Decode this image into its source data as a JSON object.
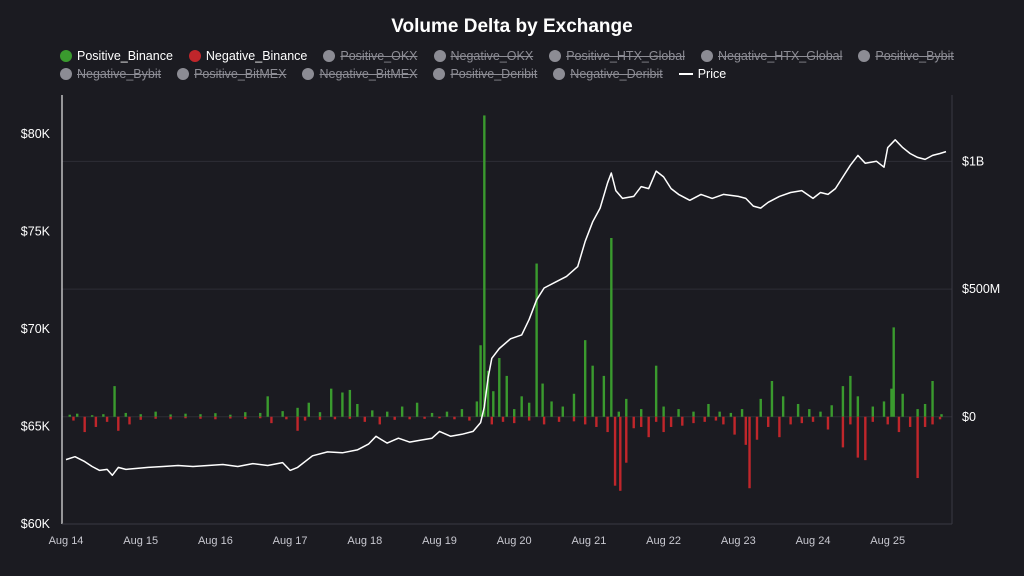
{
  "chart_data": {
    "type": "bar",
    "title": "Volume Delta by Exchange",
    "legend_placement": "top",
    "grid": true,
    "y_left": {
      "label": "",
      "ticks": [
        "$60K",
        "$65K",
        "$70K",
        "$75K",
        "$80K"
      ],
      "tick_values": [
        60000,
        65000,
        70000,
        75000,
        80000
      ],
      "ylim": [
        60000,
        82000
      ]
    },
    "y_right": {
      "label": "",
      "ticks": [
        "$0",
        "$500M",
        "$1B"
      ],
      "tick_values": [
        0,
        500000000,
        1000000000
      ],
      "ylim": [
        -420000000,
        1260000000
      ]
    },
    "x_ticks": [
      "Aug 14",
      "Aug 15",
      "Aug 16",
      "Aug 17",
      "Aug 18",
      "Aug 19",
      "Aug 20",
      "Aug 21",
      "Aug 22",
      "Aug 23",
      "Aug 24",
      "Aug 25"
    ],
    "x_range_days": [
      0,
      11.78
    ],
    "legend": [
      {
        "name": "Positive_Binance",
        "color": "#3a9a2e",
        "shape": "dot",
        "visible": true
      },
      {
        "name": "Negative_Binance",
        "color": "#c0262b",
        "shape": "dot",
        "visible": true
      },
      {
        "name": "Positive_OKX",
        "color": "#8c8c94",
        "shape": "dot",
        "visible": false
      },
      {
        "name": "Negative_OKX",
        "color": "#8c8c94",
        "shape": "dot",
        "visible": false
      },
      {
        "name": "Positive_HTX_Global",
        "color": "#8c8c94",
        "shape": "dot",
        "visible": false
      },
      {
        "name": "Negative_HTX_Global",
        "color": "#8c8c94",
        "shape": "dot",
        "visible": false
      },
      {
        "name": "Positive_Bybit",
        "color": "#8c8c94",
        "shape": "dot",
        "visible": false
      },
      {
        "name": "Negative_Bybit",
        "color": "#8c8c94",
        "shape": "dot",
        "visible": false
      },
      {
        "name": "Positive_BitMEX",
        "color": "#8c8c94",
        "shape": "dot",
        "visible": false
      },
      {
        "name": "Negative_BitMEX",
        "color": "#8c8c94",
        "shape": "dot",
        "visible": false
      },
      {
        "name": "Positive_Deribit",
        "color": "#8c8c94",
        "shape": "dot",
        "visible": false
      },
      {
        "name": "Negative_Deribit",
        "color": "#8c8c94",
        "shape": "dot",
        "visible": false
      },
      {
        "name": "Price",
        "color": "#ffffff",
        "shape": "line",
        "visible": true
      }
    ],
    "series": [
      {
        "name": "Price",
        "axis": "left",
        "points": [
          [
            0.0,
            63300
          ],
          [
            0.12,
            63450
          ],
          [
            0.25,
            63200
          ],
          [
            0.35,
            62950
          ],
          [
            0.45,
            62750
          ],
          [
            0.55,
            62800
          ],
          [
            0.62,
            62500
          ],
          [
            0.7,
            62900
          ],
          [
            0.8,
            62800
          ],
          [
            0.95,
            62850
          ],
          [
            1.1,
            62900
          ],
          [
            1.3,
            62950
          ],
          [
            1.5,
            63000
          ],
          [
            1.7,
            62950
          ],
          [
            1.9,
            63000
          ],
          [
            2.1,
            63050
          ],
          [
            2.3,
            62950
          ],
          [
            2.5,
            63100
          ],
          [
            2.7,
            63000
          ],
          [
            2.9,
            63150
          ],
          [
            3.0,
            62750
          ],
          [
            3.1,
            62900
          ],
          [
            3.3,
            63500
          ],
          [
            3.5,
            63700
          ],
          [
            3.7,
            63650
          ],
          [
            3.9,
            63800
          ],
          [
            4.05,
            64100
          ],
          [
            4.15,
            64500
          ],
          [
            4.3,
            64150
          ],
          [
            4.45,
            64400
          ],
          [
            4.6,
            64200
          ],
          [
            4.75,
            64300
          ],
          [
            4.9,
            64400
          ],
          [
            5.0,
            64750
          ],
          [
            5.15,
            64500
          ],
          [
            5.3,
            64600
          ],
          [
            5.45,
            64750
          ],
          [
            5.55,
            65200
          ],
          [
            5.6,
            66000
          ],
          [
            5.65,
            67500
          ],
          [
            5.7,
            68500
          ],
          [
            5.8,
            69000
          ],
          [
            5.95,
            69500
          ],
          [
            6.1,
            69700
          ],
          [
            6.2,
            70500
          ],
          [
            6.3,
            71500
          ],
          [
            6.4,
            72100
          ],
          [
            6.55,
            72400
          ],
          [
            6.7,
            72700
          ],
          [
            6.85,
            73200
          ],
          [
            6.95,
            74500
          ],
          [
            7.05,
            75500
          ],
          [
            7.15,
            76200
          ],
          [
            7.25,
            77500
          ],
          [
            7.3,
            78000
          ],
          [
            7.36,
            77100
          ],
          [
            7.45,
            76700
          ],
          [
            7.6,
            76800
          ],
          [
            7.7,
            77300
          ],
          [
            7.8,
            77200
          ],
          [
            7.9,
            78100
          ],
          [
            8.0,
            77800
          ],
          [
            8.1,
            77200
          ],
          [
            8.2,
            76900
          ],
          [
            8.35,
            76600
          ],
          [
            8.5,
            76900
          ],
          [
            8.65,
            76700
          ],
          [
            8.8,
            76900
          ],
          [
            9.0,
            76800
          ],
          [
            9.1,
            76700
          ],
          [
            9.2,
            76300
          ],
          [
            9.3,
            76200
          ],
          [
            9.4,
            76500
          ],
          [
            9.55,
            76800
          ],
          [
            9.7,
            77000
          ],
          [
            9.85,
            77100
          ],
          [
            10.0,
            76700
          ],
          [
            10.1,
            77000
          ],
          [
            10.2,
            76900
          ],
          [
            10.3,
            77200
          ],
          [
            10.4,
            77800
          ],
          [
            10.5,
            78400
          ],
          [
            10.6,
            78900
          ],
          [
            10.7,
            78500
          ],
          [
            10.85,
            78600
          ],
          [
            10.95,
            78300
          ],
          [
            11.0,
            79300
          ],
          [
            11.1,
            79700
          ],
          [
            11.2,
            79300
          ],
          [
            11.3,
            79000
          ],
          [
            11.4,
            78800
          ],
          [
            11.5,
            78700
          ],
          [
            11.6,
            78900
          ],
          [
            11.7,
            79000
          ],
          [
            11.78,
            79100
          ]
        ]
      },
      {
        "name": "Positive_Binance",
        "axis": "right",
        "points": [
          [
            0.05,
            8000000
          ],
          [
            0.15,
            12000000
          ],
          [
            0.35,
            6000000
          ],
          [
            0.5,
            10000000
          ],
          [
            0.65,
            120000000
          ],
          [
            0.8,
            15000000
          ],
          [
            1.0,
            10000000
          ],
          [
            1.2,
            20000000
          ],
          [
            1.4,
            9000000
          ],
          [
            1.6,
            12000000
          ],
          [
            1.8,
            10000000
          ],
          [
            2.0,
            14000000
          ],
          [
            2.2,
            8000000
          ],
          [
            2.4,
            18000000
          ],
          [
            2.6,
            15000000
          ],
          [
            2.7,
            80000000
          ],
          [
            2.9,
            22000000
          ],
          [
            3.1,
            35000000
          ],
          [
            3.25,
            55000000
          ],
          [
            3.4,
            18000000
          ],
          [
            3.55,
            110000000
          ],
          [
            3.7,
            95000000
          ],
          [
            3.8,
            105000000
          ],
          [
            3.9,
            50000000
          ],
          [
            4.1,
            25000000
          ],
          [
            4.3,
            20000000
          ],
          [
            4.5,
            40000000
          ],
          [
            4.7,
            55000000
          ],
          [
            4.9,
            15000000
          ],
          [
            5.1,
            20000000
          ],
          [
            5.3,
            30000000
          ],
          [
            5.5,
            60000000
          ],
          [
            5.55,
            280000000
          ],
          [
            5.6,
            1180000000
          ],
          [
            5.65,
            180000000
          ],
          [
            5.72,
            100000000
          ],
          [
            5.8,
            230000000
          ],
          [
            5.9,
            160000000
          ],
          [
            6.0,
            30000000
          ],
          [
            6.1,
            80000000
          ],
          [
            6.2,
            55000000
          ],
          [
            6.3,
            600000000
          ],
          [
            6.38,
            130000000
          ],
          [
            6.5,
            60000000
          ],
          [
            6.65,
            40000000
          ],
          [
            6.8,
            90000000
          ],
          [
            6.95,
            300000000
          ],
          [
            7.05,
            200000000
          ],
          [
            7.2,
            160000000
          ],
          [
            7.3,
            700000000
          ],
          [
            7.4,
            20000000
          ],
          [
            7.5,
            70000000
          ],
          [
            7.7,
            30000000
          ],
          [
            7.9,
            200000000
          ],
          [
            8.0,
            40000000
          ],
          [
            8.2,
            30000000
          ],
          [
            8.4,
            20000000
          ],
          [
            8.6,
            50000000
          ],
          [
            8.75,
            20000000
          ],
          [
            8.9,
            15000000
          ],
          [
            9.05,
            30000000
          ],
          [
            9.3,
            70000000
          ],
          [
            9.45,
            140000000
          ],
          [
            9.6,
            80000000
          ],
          [
            9.8,
            50000000
          ],
          [
            9.95,
            30000000
          ],
          [
            10.1,
            20000000
          ],
          [
            10.25,
            45000000
          ],
          [
            10.4,
            120000000
          ],
          [
            10.5,
            160000000
          ],
          [
            10.6,
            80000000
          ],
          [
            10.8,
            40000000
          ],
          [
            10.95,
            60000000
          ],
          [
            11.05,
            110000000
          ],
          [
            11.08,
            350000000
          ],
          [
            11.2,
            90000000
          ],
          [
            11.4,
            30000000
          ],
          [
            11.5,
            50000000
          ],
          [
            11.6,
            140000000
          ],
          [
            11.72,
            10000000
          ]
        ]
      },
      {
        "name": "Negative_Binance",
        "axis": "right",
        "points": [
          [
            0.1,
            -15000000
          ],
          [
            0.25,
            -60000000
          ],
          [
            0.4,
            -40000000
          ],
          [
            0.55,
            -20000000
          ],
          [
            0.7,
            -55000000
          ],
          [
            0.85,
            -30000000
          ],
          [
            1.0,
            -12000000
          ],
          [
            1.2,
            -8000000
          ],
          [
            1.4,
            -10000000
          ],
          [
            1.6,
            -6000000
          ],
          [
            1.8,
            -8000000
          ],
          [
            2.0,
            -10000000
          ],
          [
            2.2,
            -7000000
          ],
          [
            2.4,
            -9000000
          ],
          [
            2.6,
            -6000000
          ],
          [
            2.75,
            -25000000
          ],
          [
            2.95,
            -10000000
          ],
          [
            3.1,
            -55000000
          ],
          [
            3.2,
            -15000000
          ],
          [
            3.4,
            -12000000
          ],
          [
            3.6,
            -10000000
          ],
          [
            3.8,
            -8000000
          ],
          [
            4.0,
            -20000000
          ],
          [
            4.2,
            -30000000
          ],
          [
            4.4,
            -12000000
          ],
          [
            4.6,
            -10000000
          ],
          [
            4.8,
            -8000000
          ],
          [
            5.0,
            -6000000
          ],
          [
            5.2,
            -10000000
          ],
          [
            5.4,
            -15000000
          ],
          [
            5.7,
            -30000000
          ],
          [
            5.85,
            -20000000
          ],
          [
            6.0,
            -25000000
          ],
          [
            6.2,
            -15000000
          ],
          [
            6.4,
            -30000000
          ],
          [
            6.6,
            -20000000
          ],
          [
            6.8,
            -18000000
          ],
          [
            6.95,
            -30000000
          ],
          [
            7.1,
            -40000000
          ],
          [
            7.25,
            -60000000
          ],
          [
            7.35,
            -270000000
          ],
          [
            7.42,
            -290000000
          ],
          [
            7.5,
            -180000000
          ],
          [
            7.6,
            -45000000
          ],
          [
            7.7,
            -40000000
          ],
          [
            7.8,
            -80000000
          ],
          [
            7.9,
            -20000000
          ],
          [
            8.0,
            -60000000
          ],
          [
            8.1,
            -40000000
          ],
          [
            8.25,
            -35000000
          ],
          [
            8.4,
            -25000000
          ],
          [
            8.55,
            -20000000
          ],
          [
            8.7,
            -15000000
          ],
          [
            8.8,
            -30000000
          ],
          [
            8.95,
            -70000000
          ],
          [
            9.1,
            -110000000
          ],
          [
            9.15,
            -280000000
          ],
          [
            9.25,
            -90000000
          ],
          [
            9.4,
            -40000000
          ],
          [
            9.55,
            -80000000
          ],
          [
            9.7,
            -30000000
          ],
          [
            9.85,
            -25000000
          ],
          [
            10.0,
            -20000000
          ],
          [
            10.2,
            -50000000
          ],
          [
            10.4,
            -120000000
          ],
          [
            10.5,
            -30000000
          ],
          [
            10.6,
            -160000000
          ],
          [
            10.7,
            -170000000
          ],
          [
            10.8,
            -20000000
          ],
          [
            11.0,
            -30000000
          ],
          [
            11.15,
            -60000000
          ],
          [
            11.3,
            -40000000
          ],
          [
            11.4,
            -240000000
          ],
          [
            11.5,
            -40000000
          ],
          [
            11.6,
            -30000000
          ],
          [
            11.7,
            -10000000
          ]
        ]
      }
    ]
  }
}
